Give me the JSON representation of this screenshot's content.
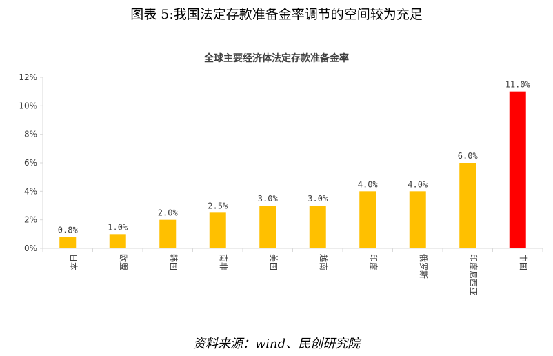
{
  "figure_title": "图表 5:我国法定存款准备金率调节的空间较为充足",
  "source_note": "资料来源：wind、民创研究院",
  "colors": {
    "bar_default": "#FFC000",
    "bar_highlight": "#FF0000",
    "axis": "#D9D9D9",
    "text": "#404040"
  },
  "chart_data": {
    "type": "bar",
    "title": "全球主要经济体法定存款准备金率",
    "xlabel": "",
    "ylabel": "",
    "ylim": [
      0,
      12
    ],
    "yticks": [
      0,
      2,
      4,
      6,
      8,
      10,
      12
    ],
    "ytick_labels": [
      "0%",
      "2%",
      "4%",
      "6%",
      "8%",
      "10%",
      "12%"
    ],
    "grid": false,
    "categories": [
      "日本",
      "欧盟",
      "韩国",
      "南非",
      "美国",
      "越南",
      "印度",
      "俄罗斯",
      "印度尼西亚",
      "中国"
    ],
    "values": [
      0.8,
      1.0,
      2.0,
      2.5,
      3.0,
      3.0,
      4.0,
      4.0,
      6.0,
      11.0
    ],
    "data_labels": [
      "0.8%",
      "1.0%",
      "2.0%",
      "2.5%",
      "3.0%",
      "3.0%",
      "4.0%",
      "4.0%",
      "6.0%",
      "11.0%"
    ],
    "highlight_index": 9
  }
}
